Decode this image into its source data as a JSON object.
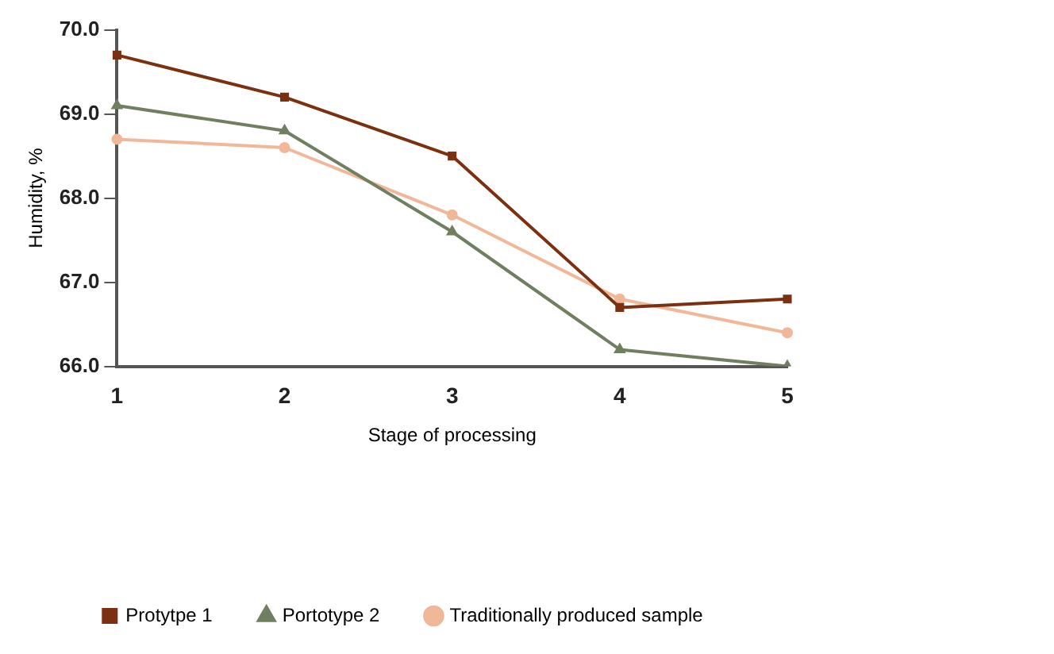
{
  "chart_data": {
    "type": "line",
    "xlabel": "Stage of processing",
    "ylabel": "Humidity, %",
    "categories": [
      "1",
      "2",
      "3",
      "4",
      "5"
    ],
    "ylim": [
      66,
      70
    ],
    "yticks": [
      {
        "value": 66,
        "label": "66.0"
      },
      {
        "value": 67,
        "label": "67.0"
      },
      {
        "value": 68,
        "label": "68.0"
      },
      {
        "value": 69,
        "label": "69.0"
      },
      {
        "value": 70,
        "label": "70.0"
      }
    ],
    "grid": false,
    "legend": "bottom",
    "line_style": "solid",
    "series": [
      {
        "name": "Protytpe 1",
        "color": "#7b3010",
        "marker": "square",
        "values": [
          69.7,
          69.2,
          68.5,
          66.7,
          66.8
        ]
      },
      {
        "name": "Portotype 2",
        "color": "#6f7f60",
        "marker": "triangle",
        "values": [
          69.1,
          68.8,
          67.6,
          66.2,
          66.0
        ]
      },
      {
        "name": "Traditionally produced sample",
        "color": "#f0b898",
        "marker": "circle",
        "values": [
          68.7,
          68.6,
          67.8,
          66.8,
          66.4
        ]
      }
    ]
  }
}
